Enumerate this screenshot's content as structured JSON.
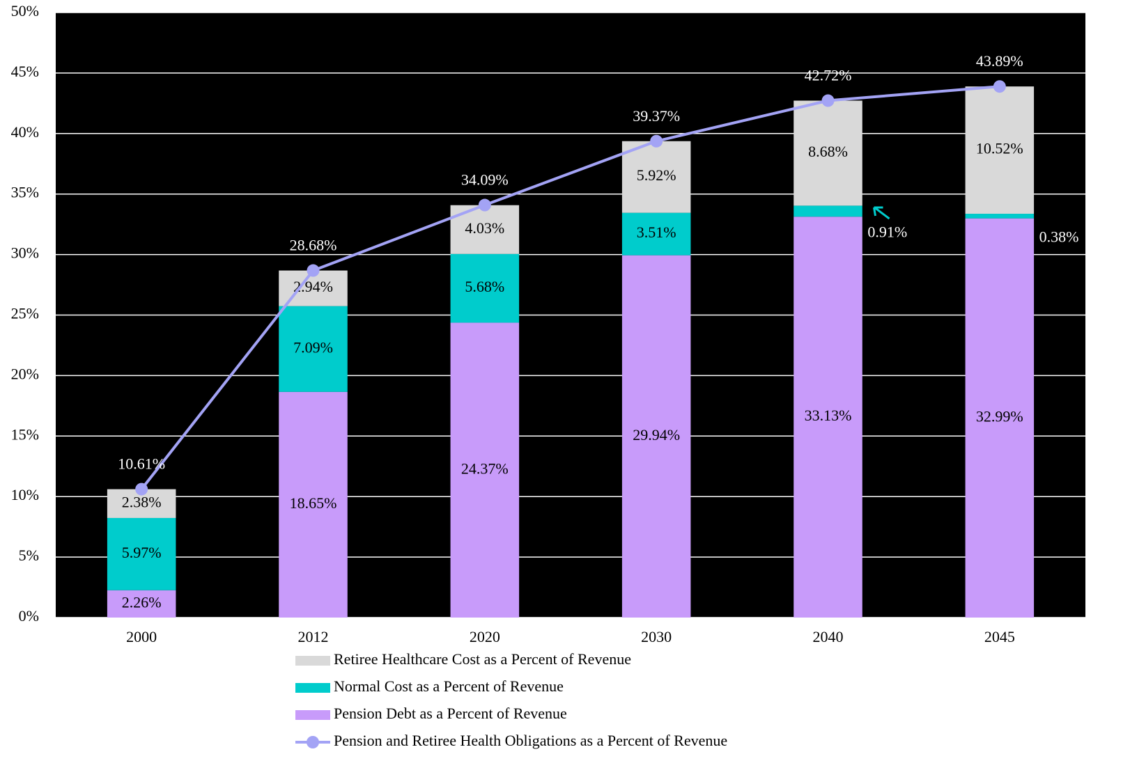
{
  "chart_data": {
    "type": "bar",
    "stacked": true,
    "categories": [
      "2000",
      "2012",
      "2020",
      "2030",
      "2040",
      "2045"
    ],
    "series": [
      {
        "name": "Pension Debt as a Percent of Revenue",
        "color": "#c89bfa",
        "values": [
          2.26,
          18.65,
          24.37,
          29.94,
          33.13,
          32.99
        ],
        "value_labels": [
          "2.26%",
          "18.65%",
          "24.37%",
          "29.94%",
          "33.13%",
          "32.99%"
        ]
      },
      {
        "name": "Normal Cost as a Percent of Revenue",
        "color": "#00cccc",
        "values": [
          5.97,
          7.09,
          5.68,
          3.51,
          0.91,
          0.38
        ],
        "value_labels": [
          "5.97%",
          "7.09%",
          "5.68%",
          "3.51%",
          "0.91%",
          "0.38%"
        ]
      },
      {
        "name": "Retiree Healthcare Cost as a Percent of Revenue",
        "color": "#d9d9d9",
        "values": [
          2.38,
          2.94,
          4.03,
          5.92,
          8.68,
          10.52
        ],
        "value_labels": [
          "2.38%",
          "2.94%",
          "4.03%",
          "5.92%",
          "8.68%",
          "10.52%"
        ]
      },
      {
        "name": "Pension and Retiree Health Obligations as a Percent of Revenue",
        "color": "#a3a3f5",
        "type": "line",
        "values": [
          10.61,
          28.68,
          34.09,
          39.37,
          42.72,
          43.89
        ],
        "value_labels": [
          "10.61%",
          "28.68%",
          "34.09%",
          "39.37%",
          "42.72%",
          "43.89%"
        ]
      }
    ],
    "ylim": [
      0,
      50
    ],
    "yticks": [
      {
        "value": 0,
        "label": "0%"
      },
      {
        "value": 5,
        "label": "5%"
      },
      {
        "value": 10,
        "label": "10%"
      },
      {
        "value": 15,
        "label": "15%"
      },
      {
        "value": 20,
        "label": "20%"
      },
      {
        "value": 25,
        "label": "25%"
      },
      {
        "value": 30,
        "label": "30%"
      },
      {
        "value": 35,
        "label": "35%"
      },
      {
        "value": 40,
        "label": "40%"
      },
      {
        "value": 45,
        "label": "45%"
      },
      {
        "value": 50,
        "label": "50%"
      }
    ],
    "grid": true,
    "plot_background": "#000000",
    "legend": "bottom"
  }
}
